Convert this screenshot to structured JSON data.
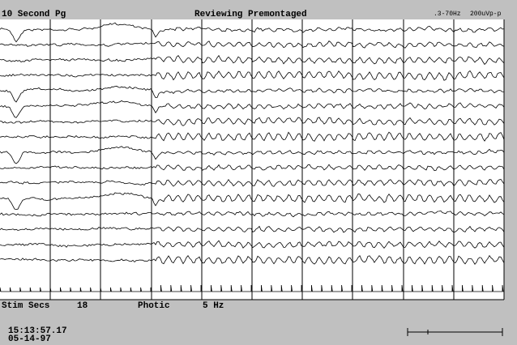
{
  "header": {
    "title_left": "10 Second Pg",
    "title_center": "Reviewing Premontaged",
    "filter": ".3-70Hz",
    "sensitivity": "200uVp-p"
  },
  "footer": {
    "stim_label": "Stim Secs",
    "stim_secs": 18,
    "photic_label": "Photic",
    "photic_rate": "5 Hz",
    "time": "15:13:57.17",
    "date": "05-14-97"
  }
}
